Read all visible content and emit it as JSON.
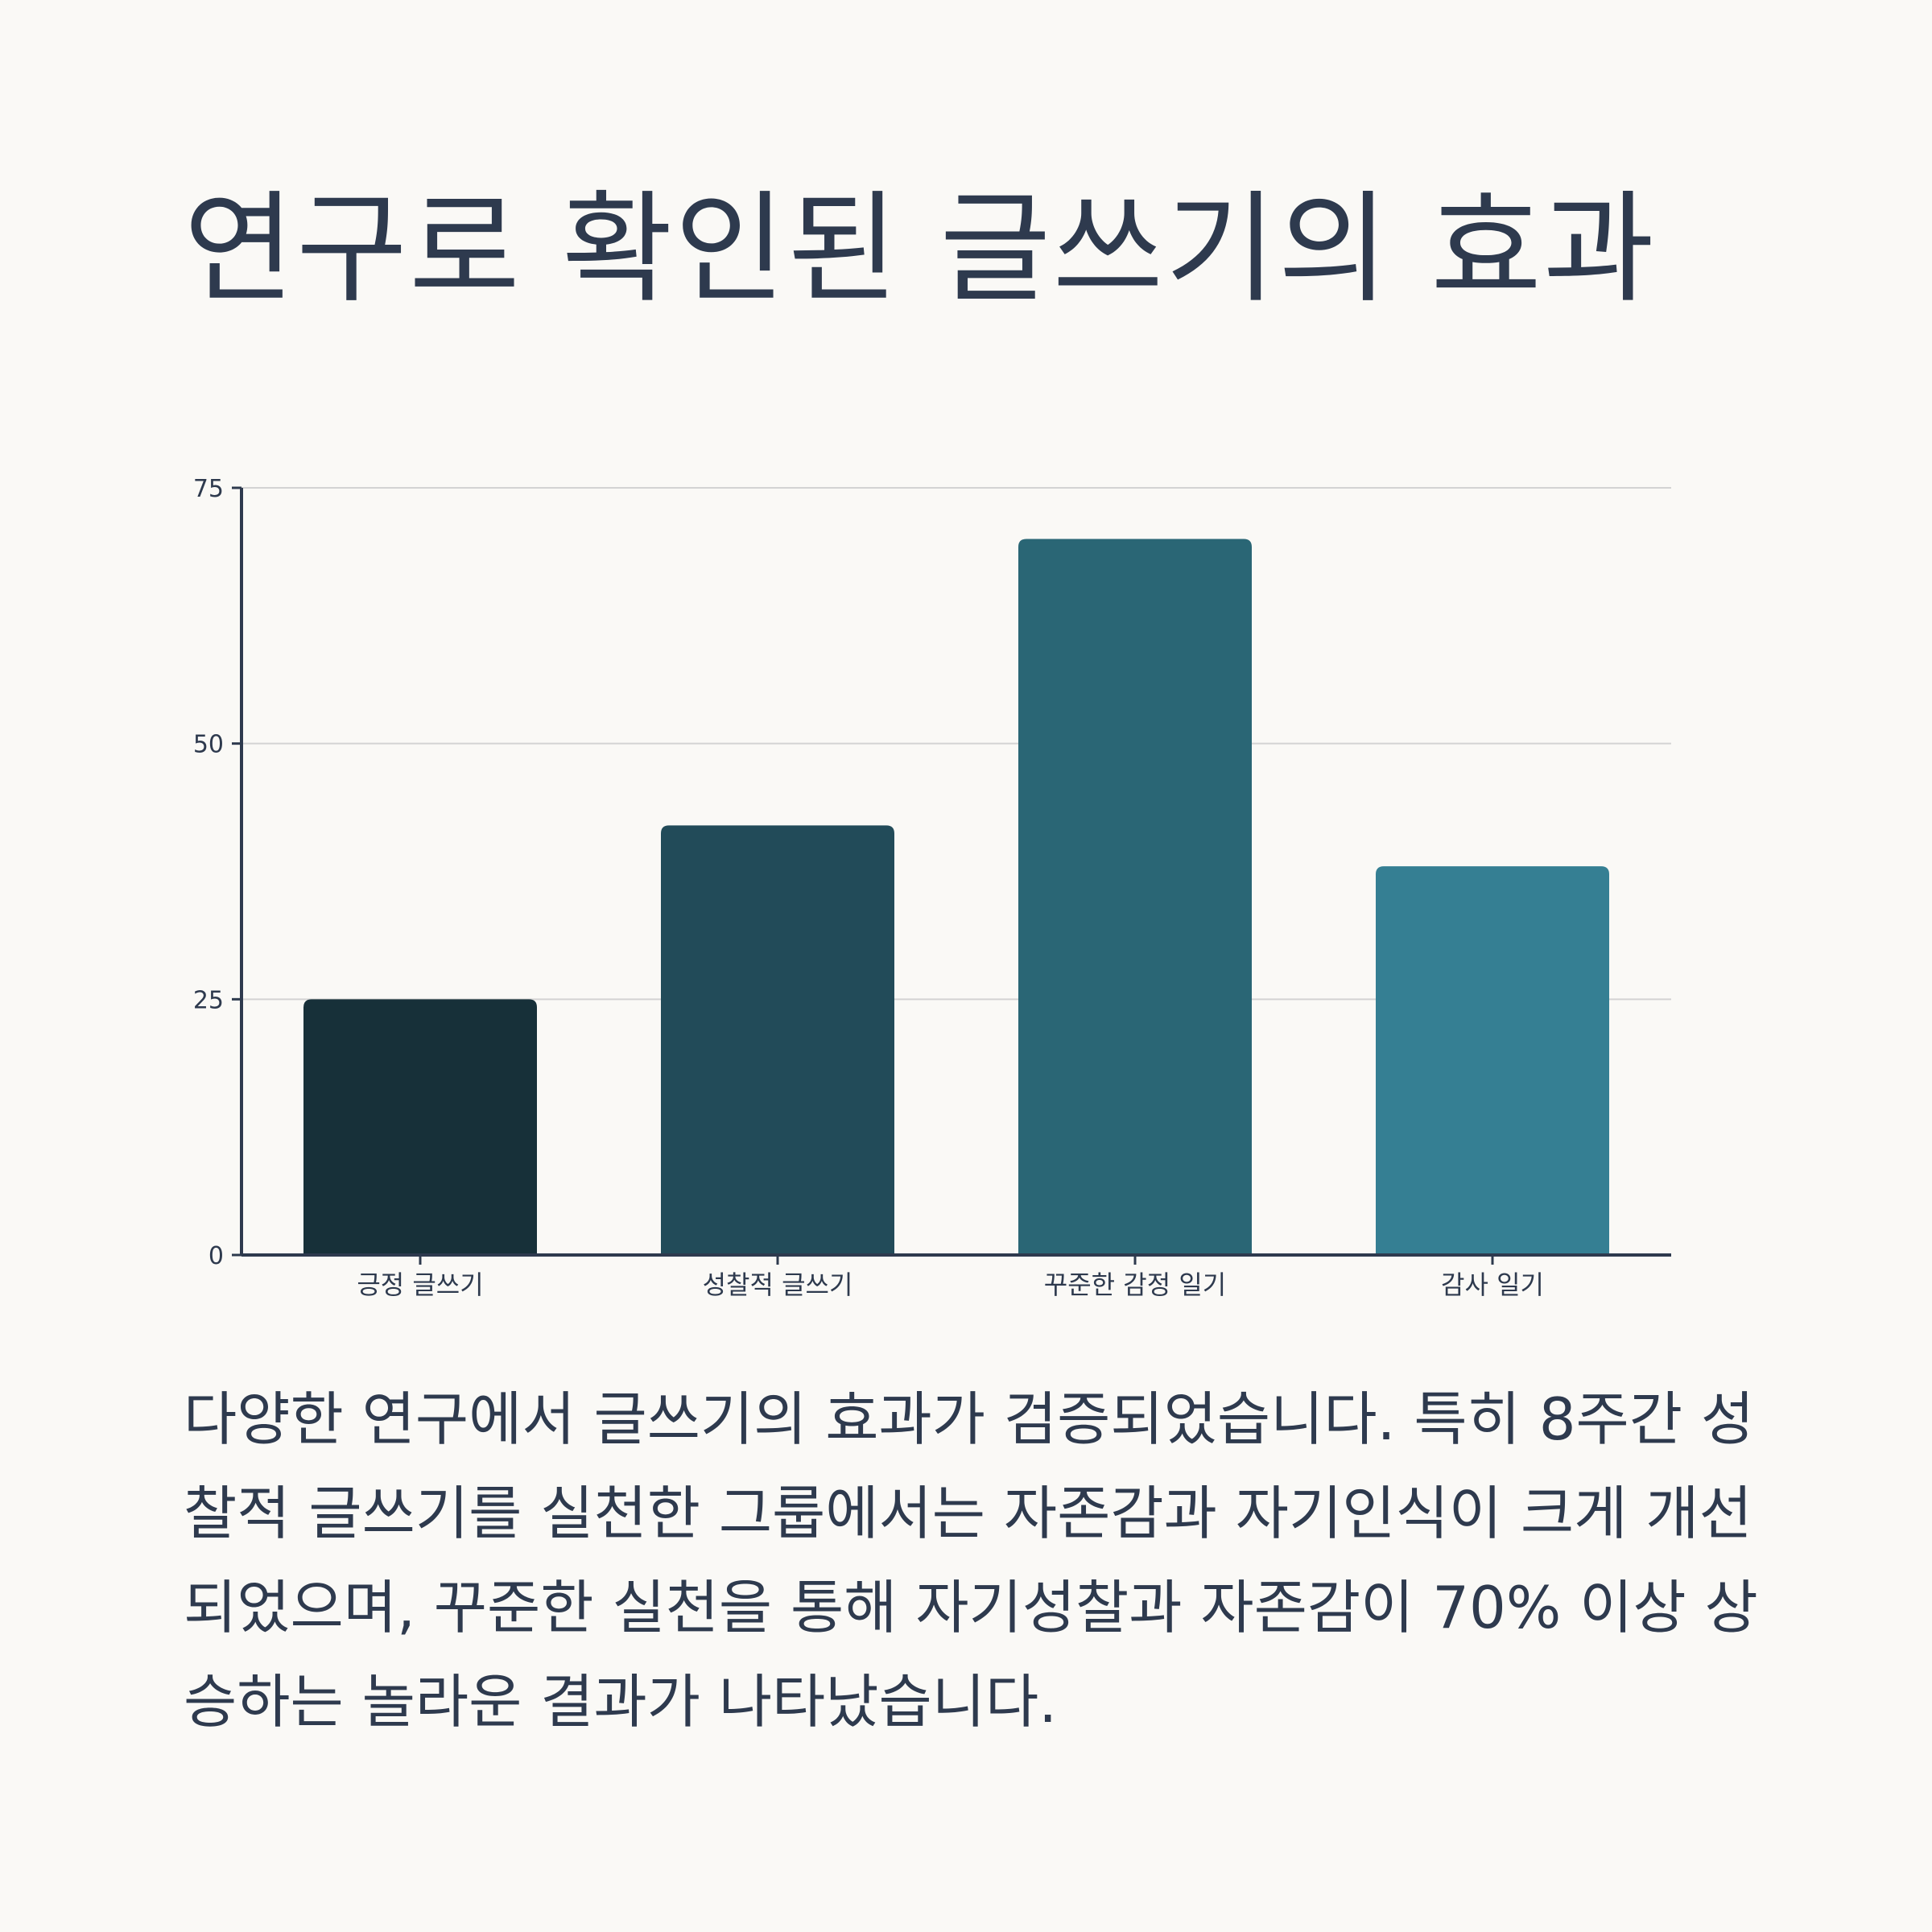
{
  "page": {
    "title": "연구로 확인된 글쓰기의 효과",
    "description": "다양한 연구에서 글쓰기의 효과가 검증되었습니다. 특히 8주간 성찰적 글쓰기를 실천한 그룹에서는 자존감과 자기인식이 크게 개선되었으며, 꾸준한 실천을 통해 자기성찰과 자존감이 70% 이상 상승하는 놀라운 결과가 나타났습니다."
  },
  "colors": {
    "background": "#FAF9F6",
    "text": "#2E3A4E",
    "axis": "#2E3A4E",
    "grid": "#D3D3D3"
  },
  "chart_data": {
    "type": "bar",
    "title": "",
    "xlabel": "",
    "ylabel": "",
    "categories": [
      "긍정 글쓰기",
      "성찰적 글쓰기",
      "꾸준한 감정 일기",
      "감사 일기"
    ],
    "values": [
      25,
      42,
      70,
      38
    ],
    "bar_colors": [
      "#173039",
      "#224B59",
      "#2A6675",
      "#357F93"
    ],
    "ylim": [
      0,
      75
    ],
    "yticks": [
      0,
      25,
      50,
      75
    ],
    "grid": true,
    "legend": "none"
  }
}
